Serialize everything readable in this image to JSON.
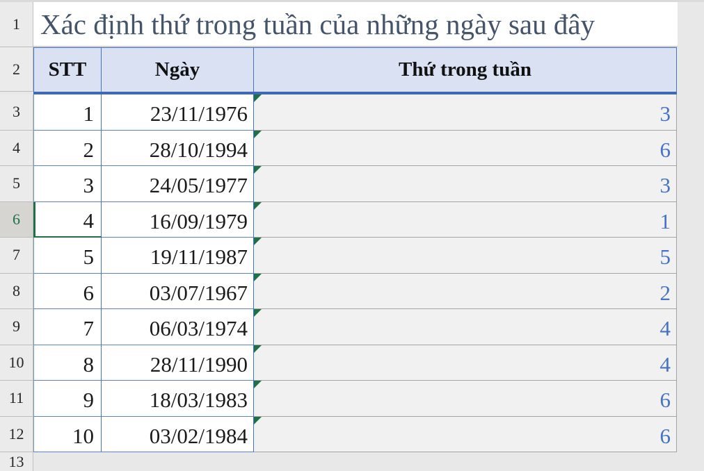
{
  "sheet": {
    "title": "Xác định thứ trong tuần của những ngày sau đây",
    "columns": {
      "stt": "STT",
      "ngay": "Ngày",
      "thu": "Thứ trong tuần"
    },
    "row_numbers": [
      "1",
      "2",
      "3",
      "4",
      "5",
      "6",
      "7",
      "8",
      "9",
      "10",
      "11",
      "12",
      "13"
    ],
    "rows": [
      {
        "stt": "1",
        "ngay": "23/11/1976",
        "thu": "3"
      },
      {
        "stt": "2",
        "ngay": "28/10/1994",
        "thu": "6"
      },
      {
        "stt": "3",
        "ngay": "24/05/1977",
        "thu": "3"
      },
      {
        "stt": "4",
        "ngay": "16/09/1979",
        "thu": "1"
      },
      {
        "stt": "5",
        "ngay": "19/11/1987",
        "thu": "5"
      },
      {
        "stt": "6",
        "ngay": "03/07/1967",
        "thu": "2"
      },
      {
        "stt": "7",
        "ngay": "06/03/1974",
        "thu": "4"
      },
      {
        "stt": "8",
        "ngay": "28/11/1990",
        "thu": "4"
      },
      {
        "stt": "9",
        "ngay": "18/03/1983",
        "thu": "6"
      },
      {
        "stt": "10",
        "ngay": "03/02/1984",
        "thu": "6"
      }
    ],
    "selection": {
      "active_row_number": "6",
      "active_cell": "A6"
    },
    "colors": {
      "header_fill": "#D9E1F2",
      "table_border_blue": "#4472C4",
      "weekday_text_blue": "#4472C4",
      "active_cell_green": "#1E7145",
      "error_indicator_green": "#1E7145",
      "result_cell_fill": "#F1F1F1",
      "title_text": "#44546A",
      "background_gray": "#E9E8E8"
    }
  }
}
